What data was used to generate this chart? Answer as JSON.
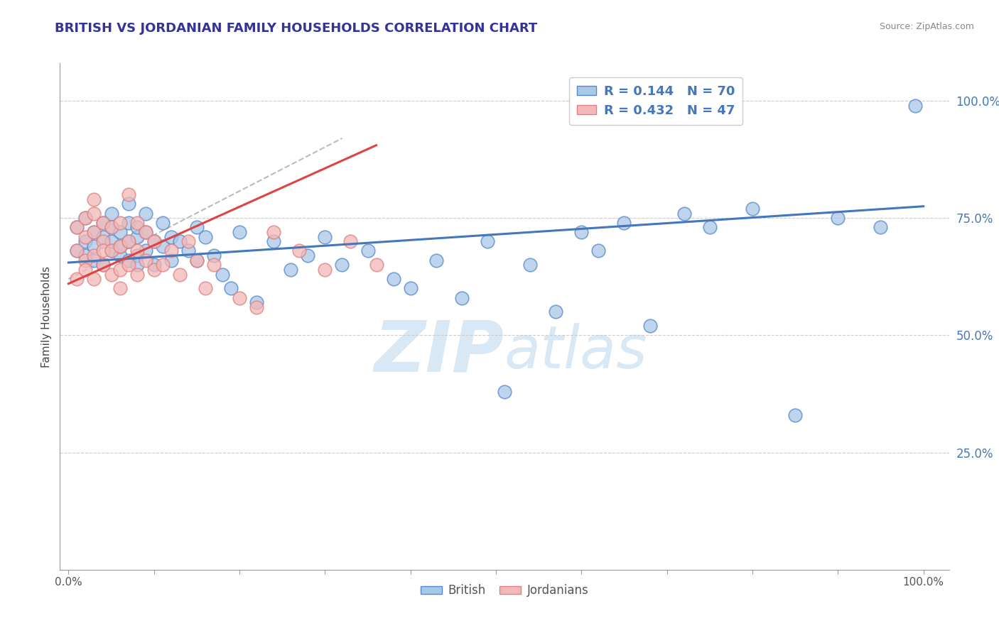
{
  "title": "BRITISH VS JORDANIAN FAMILY HOUSEHOLDS CORRELATION CHART",
  "source": "Source: ZipAtlas.com",
  "ylabel": "Family Households",
  "british_R": 0.144,
  "british_N": 70,
  "jordanian_R": 0.432,
  "jordanian_N": 47,
  "blue_color": "#a8c8e8",
  "blue_edge": "#5588cc",
  "pink_color": "#f4b8b8",
  "pink_edge": "#e08080",
  "blue_line_color": "#4477bb",
  "pink_line_color": "#dd4444",
  "grey_dash_color": "#bbbbbb",
  "title_color": "#333399",
  "legend_text_color": "#4477bb",
  "watermark_color": "#d8e8f4",
  "background_color": "#ffffff",
  "british_x": [
    0.01,
    0.01,
    0.02,
    0.02,
    0.02,
    0.03,
    0.03,
    0.03,
    0.04,
    0.04,
    0.04,
    0.05,
    0.05,
    0.05,
    0.05,
    0.06,
    0.06,
    0.06,
    0.07,
    0.07,
    0.07,
    0.07,
    0.08,
    0.08,
    0.08,
    0.08,
    0.09,
    0.09,
    0.09,
    0.1,
    0.1,
    0.11,
    0.11,
    0.12,
    0.12,
    0.13,
    0.14,
    0.15,
    0.15,
    0.16,
    0.17,
    0.18,
    0.19,
    0.2,
    0.22,
    0.24,
    0.26,
    0.28,
    0.3,
    0.32,
    0.35,
    0.38,
    0.4,
    0.43,
    0.46,
    0.49,
    0.51,
    0.54,
    0.57,
    0.6,
    0.62,
    0.65,
    0.68,
    0.72,
    0.75,
    0.8,
    0.85,
    0.9,
    0.95,
    0.99
  ],
  "british_y": [
    0.68,
    0.73,
    0.7,
    0.67,
    0.75,
    0.66,
    0.72,
    0.69,
    0.71,
    0.74,
    0.65,
    0.68,
    0.73,
    0.7,
    0.76,
    0.67,
    0.72,
    0.69,
    0.66,
    0.7,
    0.74,
    0.78,
    0.67,
    0.71,
    0.65,
    0.73,
    0.68,
    0.72,
    0.76,
    0.65,
    0.7,
    0.69,
    0.74,
    0.66,
    0.71,
    0.7,
    0.68,
    0.73,
    0.66,
    0.71,
    0.67,
    0.63,
    0.6,
    0.72,
    0.57,
    0.7,
    0.64,
    0.67,
    0.71,
    0.65,
    0.68,
    0.62,
    0.6,
    0.66,
    0.58,
    0.7,
    0.38,
    0.65,
    0.55,
    0.72,
    0.68,
    0.74,
    0.52,
    0.76,
    0.73,
    0.77,
    0.33,
    0.75,
    0.73,
    0.99
  ],
  "jordanian_x": [
    0.01,
    0.01,
    0.01,
    0.02,
    0.02,
    0.02,
    0.02,
    0.03,
    0.03,
    0.03,
    0.03,
    0.03,
    0.04,
    0.04,
    0.04,
    0.04,
    0.05,
    0.05,
    0.05,
    0.06,
    0.06,
    0.06,
    0.06,
    0.07,
    0.07,
    0.07,
    0.08,
    0.08,
    0.08,
    0.09,
    0.09,
    0.1,
    0.1,
    0.11,
    0.12,
    0.13,
    0.14,
    0.15,
    0.16,
    0.17,
    0.2,
    0.22,
    0.24,
    0.27,
    0.3,
    0.33,
    0.36
  ],
  "jordanian_y": [
    0.68,
    0.73,
    0.62,
    0.66,
    0.71,
    0.75,
    0.64,
    0.67,
    0.72,
    0.76,
    0.62,
    0.79,
    0.65,
    0.7,
    0.74,
    0.68,
    0.63,
    0.68,
    0.73,
    0.64,
    0.69,
    0.74,
    0.6,
    0.65,
    0.7,
    0.8,
    0.63,
    0.68,
    0.74,
    0.66,
    0.72,
    0.64,
    0.7,
    0.65,
    0.68,
    0.63,
    0.7,
    0.66,
    0.6,
    0.65,
    0.58,
    0.56,
    0.72,
    0.68,
    0.64,
    0.7,
    0.65
  ],
  "x_min": 0.0,
  "x_max": 1.0,
  "y_min": 0.0,
  "y_max": 1.08,
  "y_tick_positions": [
    0.25,
    0.5,
    0.75,
    1.0
  ],
  "y_tick_labels_right": [
    "25.0%",
    "50.0%",
    "75.0%",
    "100.0%"
  ]
}
